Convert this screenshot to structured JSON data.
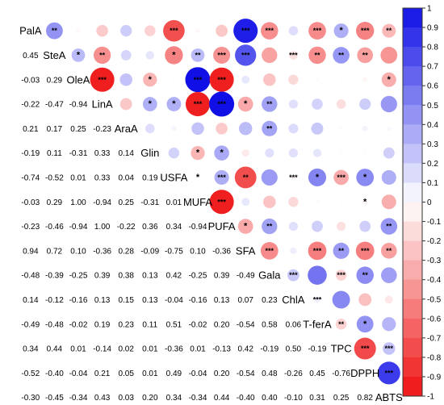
{
  "chart_data": {
    "type": "heatmap",
    "variables": [
      "PalA",
      "SteA",
      "OleA",
      "LinA",
      "AraA",
      "Glin",
      "USFA",
      "MUFA",
      "PUFA",
      "SFA",
      "Gala",
      "ChlA",
      "T-ferA",
      "TPC",
      "DPPH",
      "ABTS"
    ],
    "lower_triangle_values": [
      [],
      [
        "0.45"
      ],
      [
        "-0.03",
        "0.29"
      ],
      [
        "-0.22",
        "-0.47",
        "-0.94"
      ],
      [
        "0.21",
        "0.17",
        "0.25",
        "-0.23"
      ],
      [
        "-0.19",
        "0.11",
        "-0.31",
        "0.33",
        "0.14"
      ],
      [
        "-0.74",
        "-0.52",
        "0.01",
        "0.33",
        "0.04",
        "0.19"
      ],
      [
        "-0.03",
        "0.29",
        "1.00",
        "-0.94",
        "0.25",
        "-0.31",
        "0.01"
      ],
      [
        "-0.23",
        "-0.46",
        "-0.94",
        "1.00",
        "-0.22",
        "0.36",
        "0.34",
        "-0.94"
      ],
      [
        "0.94",
        "0.72",
        "0.10",
        "-0.36",
        "0.28",
        "-0.09",
        "-0.75",
        "0.10",
        "-0.36"
      ],
      [
        "-0.48",
        "-0.39",
        "-0.25",
        "0.39",
        "0.38",
        "0.13",
        "0.42",
        "-0.25",
        "0.39",
        "-0.49"
      ],
      [
        "0.14",
        "-0.12",
        "-0.16",
        "0.13",
        "0.15",
        "0.13",
        "-0.04",
        "-0.16",
        "0.13",
        "0.07",
        "0.23"
      ],
      [
        "-0.49",
        "-0.48",
        "-0.02",
        "0.19",
        "0.23",
        "0.11",
        "0.51",
        "-0.02",
        "0.20",
        "-0.54",
        "0.58",
        "0.06"
      ],
      [
        "0.34",
        "0.44",
        "0.01",
        "-0.14",
        "0.02",
        "0.01",
        "-0.36",
        "0.01",
        "-0.13",
        "0.42",
        "-0.19",
        "0.50",
        "-0.19"
      ],
      [
        "-0.52",
        "-0.40",
        "-0.04",
        "0.21",
        "0.05",
        "0.01",
        "0.49",
        "-0.04",
        "0.20",
        "-0.54",
        "0.48",
        "-0.26",
        "0.45",
        "-0.76"
      ],
      [
        "-0.30",
        "-0.45",
        "-0.34",
        "0.43",
        "0.03",
        "0.20",
        "0.34",
        "-0.34",
        "0.44",
        "-0.40",
        "0.40",
        "-0.10",
        "0.31",
        "0.25",
        "0.82"
      ]
    ],
    "significance_marks": {
      "PalA": [
        "**",
        "",
        "",
        "",
        "",
        "***",
        "",
        "",
        "***",
        "***",
        "",
        "***",
        "*",
        "***",
        "**"
      ],
      "SteA": [
        "*",
        "**",
        "",
        "",
        "*",
        "**",
        "***",
        "***",
        "",
        "***",
        "**",
        "**",
        "**"
      ],
      "OleA": [
        "***",
        "",
        "*",
        "",
        "***",
        "***",
        "",
        "",
        "",
        "",
        "",
        "",
        "*"
      ],
      "LinA": [
        "",
        "*",
        "*",
        "***",
        "***",
        "*",
        "**",
        "",
        "",
        "",
        "",
        "",
        "**"
      ],
      "AraA": [
        "",
        "",
        "",
        "",
        "",
        "**"
      ],
      "Glin": [
        "",
        "*",
        "*"
      ],
      "USFA": [
        "*",
        "***",
        "**",
        "",
        "***",
        "*",
        "***",
        "*"
      ],
      "MUFA": [
        "***",
        "",
        "",
        "",
        "",
        "",
        "*"
      ],
      "PUFA": [
        "*",
        "**",
        "",
        "",
        "",
        "",
        "**"
      ],
      "SFA": [
        "***",
        "",
        "***",
        "**",
        "***",
        "**"
      ],
      "Gala": [
        "***",
        "",
        "***",
        "**"
      ],
      "ChlA": [
        "***"
      ],
      "T-ferA": [
        "**",
        "*"
      ],
      "TPC": [
        "***",
        "***"
      ],
      "DPPH": [
        "***"
      ]
    },
    "colorbar": {
      "ticks": [
        "1",
        "0.9",
        "0.8",
        "0.7",
        "0.6",
        "0.5",
        "0.4",
        "0.3",
        "0.2",
        "0.1",
        "0",
        "-0.1",
        "-0.2",
        "-0.3",
        "-0.4",
        "-0.5",
        "-0.6",
        "-0.7",
        "-0.8",
        "-0.9",
        "-1"
      ],
      "max_color": "#1010e6",
      "mid_color": "#ffffff",
      "min_color": "#ee1111"
    }
  }
}
